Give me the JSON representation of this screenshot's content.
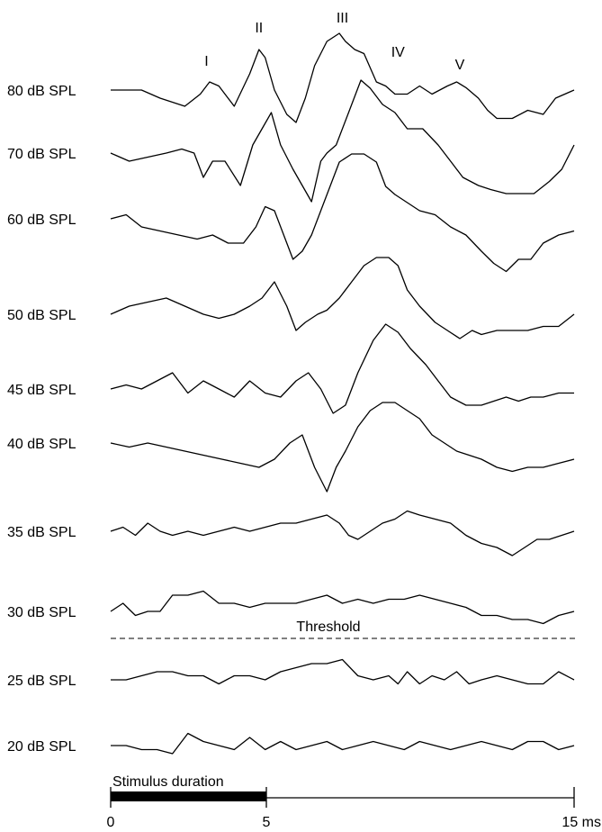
{
  "chart_data": {
    "type": "line",
    "x_unit": "ms",
    "x_ticks": [
      "0",
      "5",
      "15 ms"
    ],
    "x_range": [
      0,
      15
    ],
    "stimulus": {
      "label": "Stimulus duration",
      "start": 0,
      "end": 5
    },
    "threshold": {
      "label": "Threshold",
      "between": [
        "30 dB SPL",
        "25 dB SPL"
      ]
    },
    "wave_peaks": [
      {
        "label": "I",
        "t": 3.1
      },
      {
        "label": "II",
        "t": 4.8
      },
      {
        "label": "III",
        "t": 7.5
      },
      {
        "label": "IV",
        "t": 9.3
      },
      {
        "label": "V",
        "t": 11.3
      }
    ],
    "series": [
      {
        "name": "80 dB SPL",
        "t": [
          0,
          1,
          1.6,
          2.4,
          2.9,
          3.2,
          3.5,
          4.0,
          4.5,
          4.8,
          5.0,
          5.3,
          5.7,
          6.0,
          6.3,
          6.6,
          7.0,
          7.4,
          7.6,
          7.9,
          8.2,
          8.6,
          8.9,
          9.2,
          9.6,
          10.0,
          10.4,
          10.9,
          11.2,
          11.5,
          11.9,
          12.2,
          12.5,
          13.0,
          13.5,
          14.0,
          14.4,
          15.0
        ],
        "v": [
          0,
          0,
          -1,
          -2,
          -0.5,
          1,
          0.5,
          -2,
          2,
          5,
          4,
          0,
          -3,
          -4,
          -1,
          3,
          6,
          7,
          6,
          5,
          4.5,
          1,
          0.5,
          -0.5,
          -0.5,
          0.5,
          -0.5,
          0.5,
          1,
          0.3,
          -1,
          -2.5,
          -3.5,
          -3.5,
          -2.5,
          -3,
          -1,
          0
        ]
      },
      {
        "name": "70 dB SPL",
        "t": [
          0,
          0.6,
          1.2,
          1.8,
          2.3,
          2.7,
          3.0,
          3.3,
          3.7,
          4.2,
          4.6,
          4.9,
          5.2,
          5.5,
          5.9,
          6.2,
          6.5,
          6.8,
          7.0,
          7.3,
          7.7,
          8.1,
          8.4,
          8.8,
          9.2,
          9.6,
          10.1,
          10.6,
          11.0,
          11.4,
          11.9,
          12.3,
          12.8,
          13.2,
          13.7,
          14.2,
          14.6,
          15.0
        ],
        "v": [
          0,
          -1,
          -0.5,
          0,
          0.5,
          0,
          -3,
          -1,
          -1,
          -4,
          1,
          3,
          5,
          1,
          -2,
          -4,
          -6,
          -1,
          0,
          1,
          5,
          9,
          8,
          6,
          5,
          3,
          3,
          1,
          -1,
          -3,
          -4,
          -4.5,
          -5,
          -5,
          -5,
          -3.5,
          -2,
          1
        ]
      },
      {
        "name": "60 dB SPL",
        "t": [
          0,
          0.5,
          1.0,
          1.6,
          2.2,
          2.8,
          3.3,
          3.8,
          4.3,
          4.7,
          5.0,
          5.3,
          5.6,
          5.9,
          6.2,
          6.5,
          6.8,
          7.1,
          7.4,
          7.8,
          8.2,
          8.6,
          8.9,
          9.2,
          9.6,
          10.0,
          10.5,
          11.0,
          11.5,
          12.0,
          12.4,
          12.8,
          13.2,
          13.6,
          14.0,
          14.5,
          15.0
        ],
        "v": [
          0,
          0.5,
          -1,
          -1.5,
          -2,
          -2.5,
          -2,
          -3,
          -3,
          -1,
          1.5,
          1,
          -2,
          -5,
          -4,
          -2,
          1,
          4,
          7,
          8,
          8,
          7,
          4,
          3,
          2,
          1,
          0.5,
          -1,
          -2,
          -4,
          -5.5,
          -6.5,
          -5,
          -5,
          -3,
          -2,
          -1.5
        ]
      },
      {
        "name": "50 dB SPL",
        "t": [
          0,
          0.6,
          1.2,
          1.8,
          2.4,
          3.0,
          3.5,
          4.0,
          4.5,
          4.9,
          5.3,
          5.7,
          6.0,
          6.3,
          6.7,
          7.0,
          7.4,
          7.8,
          8.2,
          8.6,
          9.0,
          9.3,
          9.6,
          10.0,
          10.5,
          10.9,
          11.3,
          11.7,
          12.0,
          12.5,
          13.0,
          13.5,
          14.0,
          14.5,
          15.0
        ],
        "v": [
          0,
          1,
          1.5,
          2,
          1,
          0,
          -0.5,
          0,
          1,
          2,
          4,
          1,
          -2,
          -1,
          0,
          0.5,
          2,
          4,
          6,
          7,
          7,
          6,
          3,
          1,
          -1,
          -2,
          -3,
          -2,
          -2.5,
          -2,
          -2,
          -2,
          -1.5,
          -1.5,
          0
        ]
      },
      {
        "name": "45 dB SPL",
        "t": [
          0,
          0.5,
          1.0,
          1.5,
          2.0,
          2.5,
          3.0,
          3.5,
          4.0,
          4.5,
          5.0,
          5.5,
          6.0,
          6.4,
          6.8,
          7.2,
          7.6,
          8.0,
          8.5,
          8.9,
          9.3,
          9.7,
          10.2,
          10.6,
          11.0,
          11.5,
          12.0,
          12.4,
          12.8,
          13.2,
          13.6,
          14.0,
          14.5,
          15.0
        ],
        "v": [
          0,
          0.5,
          0,
          1,
          2,
          -0.5,
          1,
          0,
          -1,
          1,
          -0.5,
          -1,
          1,
          2,
          0,
          -3,
          -2,
          2,
          6,
          8,
          7,
          5,
          3,
          1,
          -1,
          -2,
          -2,
          -1.5,
          -1,
          -1.5,
          -1,
          -1,
          -0.5,
          -0.5
        ]
      },
      {
        "name": "40 dB SPL",
        "t": [
          0,
          0.6,
          1.2,
          1.8,
          2.4,
          3.0,
          3.6,
          4.2,
          4.8,
          5.3,
          5.8,
          6.2,
          6.6,
          7.0,
          7.3,
          7.6,
          8.0,
          8.4,
          8.8,
          9.2,
          9.6,
          10.0,
          10.4,
          10.8,
          11.2,
          11.6,
          12.0,
          12.5,
          13.0,
          13.5,
          14.0,
          14.5,
          15.0
        ],
        "v": [
          0,
          -0.5,
          0,
          -0.5,
          -1,
          -1.5,
          -2,
          -2.5,
          -3,
          -2,
          0,
          1,
          -3,
          -6,
          -3,
          -1,
          2,
          4,
          5,
          5,
          4,
          3,
          1,
          0,
          -1,
          -1.5,
          -2,
          -3,
          -3.5,
          -3,
          -3,
          -2.5,
          -2
        ]
      },
      {
        "name": "35 dB SPL",
        "t": [
          0,
          0.4,
          0.8,
          1.2,
          1.6,
          2.0,
          2.5,
          3.0,
          3.5,
          4.0,
          4.5,
          5.0,
          5.5,
          6.0,
          6.5,
          7.0,
          7.4,
          7.7,
          8.0,
          8.4,
          8.8,
          9.2,
          9.6,
          10.0,
          10.5,
          11.0,
          11.5,
          12.0,
          12.5,
          13.0,
          13.4,
          13.8,
          14.2,
          14.6,
          15.0
        ],
        "v": [
          0,
          0.5,
          -0.5,
          1,
          0,
          -0.5,
          0,
          -0.5,
          0,
          0.5,
          0,
          0.5,
          1,
          1,
          1.5,
          2,
          1,
          -0.5,
          -1,
          0,
          1,
          1.5,
          2.5,
          2,
          1.5,
          1,
          -0.5,
          -1.5,
          -2,
          -3,
          -2,
          -1,
          -1,
          -0.5,
          0
        ]
      },
      {
        "name": "30 dB SPL",
        "t": [
          0,
          0.4,
          0.8,
          1.2,
          1.6,
          2.0,
          2.5,
          3.0,
          3.5,
          4.0,
          4.5,
          5.0,
          5.5,
          6.0,
          6.5,
          7.0,
          7.5,
          8.0,
          8.5,
          9.0,
          9.5,
          10.0,
          10.5,
          11.0,
          11.5,
          12.0,
          12.5,
          13.0,
          13.5,
          14.0,
          14.5,
          15.0
        ],
        "v": [
          0,
          1,
          -0.5,
          0,
          0,
          2,
          2,
          2.5,
          1,
          1,
          0.5,
          1,
          1,
          1,
          1.5,
          2,
          1,
          1.5,
          1,
          1.5,
          1.5,
          2,
          1.5,
          1,
          0.5,
          -0.5,
          -0.5,
          -1,
          -1,
          -1.5,
          -0.5,
          0
        ]
      },
      {
        "name": "25 dB SPL",
        "t": [
          0,
          0.5,
          1.0,
          1.5,
          2.0,
          2.5,
          3.0,
          3.5,
          4.0,
          4.5,
          5.0,
          5.5,
          6.0,
          6.5,
          7.0,
          7.5,
          8.0,
          8.5,
          9.0,
          9.3,
          9.6,
          10.0,
          10.4,
          10.8,
          11.2,
          11.6,
          12.0,
          12.5,
          13.0,
          13.5,
          14.0,
          14.5,
          15.0
        ],
        "v": [
          0,
          0,
          0.5,
          1,
          1,
          0.5,
          0.5,
          -0.5,
          0.5,
          0.5,
          0,
          1,
          1.5,
          2,
          2,
          2.5,
          0.5,
          0,
          0.5,
          -0.5,
          1,
          -0.5,
          0.5,
          0,
          1,
          -0.5,
          0,
          0.5,
          0,
          -0.5,
          -0.5,
          1,
          0
        ]
      },
      {
        "name": "20 dB SPL",
        "t": [
          0,
          0.5,
          1.0,
          1.5,
          2.0,
          2.5,
          3.0,
          3.5,
          4.0,
          4.5,
          5.0,
          5.5,
          6.0,
          6.5,
          7.0,
          7.5,
          8.0,
          8.5,
          9.0,
          9.5,
          10.0,
          10.5,
          11.0,
          11.5,
          12.0,
          12.5,
          13.0,
          13.5,
          14.0,
          14.5,
          15.0
        ],
        "v": [
          0,
          0,
          -0.5,
          -0.5,
          -1,
          1.5,
          0.5,
          0,
          -0.5,
          1,
          -0.5,
          0.5,
          -0.5,
          0,
          0.5,
          -0.5,
          0,
          0.5,
          0,
          -0.5,
          0.5,
          0,
          -0.5,
          0,
          0.5,
          0,
          -0.5,
          0.5,
          0.5,
          -0.5,
          0
        ]
      }
    ]
  }
}
